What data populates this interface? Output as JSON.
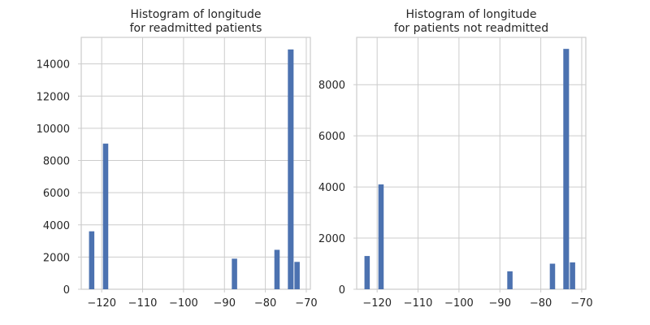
{
  "chart_data": [
    {
      "type": "bar",
      "title_line1": "Histogram of longitude",
      "title_line2": "for readmitted patients",
      "xlabel": "",
      "ylabel": "",
      "xlim": [
        -125,
        -69
      ],
      "ylim": [
        0,
        15650
      ],
      "x_ticks": [
        -120,
        -110,
        -100,
        -90,
        -80,
        -70
      ],
      "x_tick_labels": [
        "−120",
        "−110",
        "−100",
        "−90",
        "−80",
        "−70"
      ],
      "y_ticks": [
        0,
        2000,
        4000,
        6000,
        8000,
        10000,
        12000,
        14000
      ],
      "y_tick_labels": [
        "0",
        "2000",
        "4000",
        "6000",
        "8000",
        "10000",
        "12000",
        "14000"
      ],
      "grid": true,
      "bar_color": "#4c72b0",
      "bins": [
        {
          "start": -123.2,
          "end": -121.7,
          "value": 3600
        },
        {
          "start": -119.8,
          "end": -118.3,
          "value": 9050
        },
        {
          "start": -88.3,
          "end": -86.8,
          "value": 1900
        },
        {
          "start": -77.9,
          "end": -76.4,
          "value": 2450
        },
        {
          "start": -74.6,
          "end": -73.0,
          "value": 14900
        },
        {
          "start": -73.0,
          "end": -71.5,
          "value": 1700
        }
      ]
    },
    {
      "type": "bar",
      "title_line1": "Histogram of longitude",
      "title_line2": "for patients not readmitted",
      "xlabel": "",
      "ylabel": "",
      "xlim": [
        -125,
        -69
      ],
      "ylim": [
        0,
        9850
      ],
      "x_ticks": [
        -120,
        -110,
        -100,
        -90,
        -80,
        -70
      ],
      "x_tick_labels": [
        "−120",
        "−110",
        "−100",
        "−90",
        "−80",
        "−70"
      ],
      "y_ticks": [
        0,
        2000,
        4000,
        6000,
        8000
      ],
      "y_tick_labels": [
        "0",
        "2000",
        "4000",
        "6000",
        "8000"
      ],
      "grid": true,
      "bar_color": "#4c72b0",
      "bins": [
        {
          "start": -123.2,
          "end": -121.7,
          "value": 1300
        },
        {
          "start": -119.8,
          "end": -118.3,
          "value": 4100
        },
        {
          "start": -88.3,
          "end": -86.8,
          "value": 700
        },
        {
          "start": -77.9,
          "end": -76.4,
          "value": 1000
        },
        {
          "start": -74.6,
          "end": -73.0,
          "value": 9400
        },
        {
          "start": -73.0,
          "end": -71.5,
          "value": 1050
        }
      ]
    }
  ]
}
